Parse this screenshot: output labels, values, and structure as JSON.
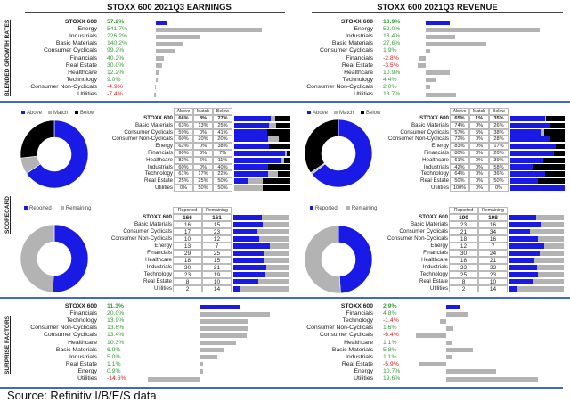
{
  "section_labels": {
    "growth": "BLENDED GROWTH RATES",
    "scorecard": "SCORECARD",
    "surprise": "SURPRISE FACTORS"
  },
  "source": "Source: Refinitiv I/B/E/S data",
  "colors": {
    "stoxx_bar": "#1a1ae6",
    "sector_bar": "#b3b3b3",
    "above": "#1a1ae6",
    "match": "#b3b3b3",
    "below": "#000000",
    "positive_text": "#3a9a3a",
    "negative_text": "#d22222",
    "divider": "#4466cc"
  },
  "earnings": {
    "title": "STOXX 600 2021Q3 EARNINGS",
    "growth": {
      "rows": [
        {
          "label": "STOXX 600",
          "value": "57.2%"
        },
        {
          "label": "Energy",
          "value": "541.7%"
        },
        {
          "label": "Industrials",
          "value": "226.2%"
        },
        {
          "label": "Basic Materials",
          "value": "140.2%"
        },
        {
          "label": "Consumer Cyclicals",
          "value": "99.2%"
        },
        {
          "label": "Financials",
          "value": "40.2%"
        },
        {
          "label": "Real Estate",
          "value": "30.0%"
        },
        {
          "label": "Healthcare",
          "value": "12.2%"
        },
        {
          "label": "Technology",
          "value": "9.0%"
        },
        {
          "label": "Consumer Non-Cyclicals",
          "value": "-4.9%"
        },
        {
          "label": "Utilities",
          "value": "-7.4%"
        }
      ]
    },
    "scorecard": {
      "legend": [
        "Above",
        "Match",
        "Below"
      ],
      "headers": [
        "Above",
        "Match",
        "Below"
      ],
      "rows": [
        {
          "label": "STOXX 600",
          "cells": [
            "66%",
            "8%",
            "27%"
          ]
        },
        {
          "label": "Basic Materials",
          "cells": [
            "63%",
            "13%",
            "25%"
          ]
        },
        {
          "label": "Consumer Cyclicals",
          "cells": [
            "59%",
            "0%",
            "41%"
          ]
        },
        {
          "label": "Consumer Non-Cyclicals",
          "cells": [
            "60%",
            "20%",
            "20%"
          ]
        },
        {
          "label": "Energy",
          "cells": [
            "62%",
            "0%",
            "38%"
          ]
        },
        {
          "label": "Financials",
          "cells": [
            "90%",
            "3%",
            "7%"
          ]
        },
        {
          "label": "Healthcare",
          "cells": [
            "83%",
            "6%",
            "11%"
          ]
        },
        {
          "label": "Industrials",
          "cells": [
            "60%",
            "0%",
            "40%"
          ]
        },
        {
          "label": "Technology",
          "cells": [
            "61%",
            "17%",
            "22%"
          ]
        },
        {
          "label": "Real Estate",
          "cells": [
            "25%",
            "25%",
            "50%"
          ]
        },
        {
          "label": "Utilities",
          "cells": [
            "0%",
            "50%",
            "50%"
          ]
        }
      ]
    },
    "reported": {
      "legend": [
        "Reported",
        "Remaining"
      ],
      "headers": [
        "Reported",
        "Remaining"
      ],
      "rows": [
        {
          "label": "STOXX 600",
          "cells": [
            "166",
            "161"
          ]
        },
        {
          "label": "Basic Materials",
          "cells": [
            "16",
            "15"
          ]
        },
        {
          "label": "Consumer Cyclicals",
          "cells": [
            "17",
            "23"
          ]
        },
        {
          "label": "Consumer Non-Cyclicals",
          "cells": [
            "10",
            "12"
          ]
        },
        {
          "label": "Energy",
          "cells": [
            "13",
            "7"
          ]
        },
        {
          "label": "Financials",
          "cells": [
            "29",
            "25"
          ]
        },
        {
          "label": "Healthcare",
          "cells": [
            "18",
            "15"
          ]
        },
        {
          "label": "Industrials",
          "cells": [
            "30",
            "21"
          ]
        },
        {
          "label": "Technology",
          "cells": [
            "23",
            "19"
          ]
        },
        {
          "label": "Real Estate",
          "cells": [
            "8",
            "10"
          ]
        },
        {
          "label": "Utilities",
          "cells": [
            "2",
            "14"
          ]
        }
      ]
    },
    "surprise": {
      "rows": [
        {
          "label": "STOXX 600",
          "value": "11.3%"
        },
        {
          "label": "Financials",
          "value": "20.0%"
        },
        {
          "label": "Technology",
          "value": "13.9%"
        },
        {
          "label": "Consumer Non-Cyclicals",
          "value": "13.6%"
        },
        {
          "label": "Consumer Cyclicals",
          "value": "13.4%"
        },
        {
          "label": "Healthcare",
          "value": "10.3%"
        },
        {
          "label": "Basic Materials",
          "value": "6.9%"
        },
        {
          "label": "Industrials",
          "value": "5.0%"
        },
        {
          "label": "Real Estate",
          "value": "1.1%"
        },
        {
          "label": "Energy",
          "value": "0.9%"
        },
        {
          "label": "Utilities",
          "value": "-14.6%"
        }
      ]
    }
  },
  "revenue": {
    "title": "STOXX 600 2021Q3 REVENUE",
    "growth": {
      "rows": [
        {
          "label": "STOXX 600",
          "value": "10.9%"
        },
        {
          "label": "Energy",
          "value": "52.0%"
        },
        {
          "label": "Industrials",
          "value": "13.4%"
        },
        {
          "label": "Basic Materials",
          "value": "27.6%"
        },
        {
          "label": "Consumer Cyclicals",
          "value": "1.9%"
        },
        {
          "label": "Financials",
          "value": "-2.8%"
        },
        {
          "label": "Real Estate",
          "value": "-3.5%"
        },
        {
          "label": "Healthcare",
          "value": "10.9%"
        },
        {
          "label": "Technology",
          "value": "4.4%"
        },
        {
          "label": "Consumer Non-Cyclicals",
          "value": "2.0%"
        },
        {
          "label": "Utilities",
          "value": "13.7%"
        }
      ]
    },
    "scorecard": {
      "legend": [
        "Above",
        "Match",
        "Below"
      ],
      "headers": [
        "Above",
        "Match",
        "Below"
      ],
      "rows": [
        {
          "label": "STOXX 600",
          "cells": [
            "65%",
            "1%",
            "35%"
          ]
        },
        {
          "label": "Basic Materials",
          "cells": [
            "74%",
            "0%",
            "26%"
          ]
        },
        {
          "label": "Consumer Cyclicals",
          "cells": [
            "57%",
            "5%",
            "38%"
          ]
        },
        {
          "label": "Consumer Non-Cyclicals",
          "cells": [
            "72%",
            "0%",
            "28%"
          ]
        },
        {
          "label": "Energy",
          "cells": [
            "83%",
            "0%",
            "17%"
          ]
        },
        {
          "label": "Financials",
          "cells": [
            "80%",
            "0%",
            "20%"
          ]
        },
        {
          "label": "Healthcare",
          "cells": [
            "61%",
            "0%",
            "39%"
          ]
        },
        {
          "label": "Industrials",
          "cells": [
            "42%",
            "0%",
            "58%"
          ]
        },
        {
          "label": "Technology",
          "cells": [
            "64%",
            "0%",
            "36%"
          ]
        },
        {
          "label": "Real Estate",
          "cells": [
            "50%",
            "0%",
            "50%"
          ]
        },
        {
          "label": "Utilities",
          "cells": [
            "100%",
            "0%",
            "0%"
          ]
        }
      ]
    },
    "reported": {
      "legend": [
        "Reported",
        "Remaining"
      ],
      "headers": [
        "Reported",
        "Remaining"
      ],
      "rows": [
        {
          "label": "STOXX 600",
          "cells": [
            "190",
            "198"
          ]
        },
        {
          "label": "Basic Materials",
          "cells": [
            "23",
            "16"
          ]
        },
        {
          "label": "Consumer Cyclicals",
          "cells": [
            "21",
            "34"
          ]
        },
        {
          "label": "Consumer Non-Cyclicals",
          "cells": [
            "18",
            "16"
          ]
        },
        {
          "label": "Energy",
          "cells": [
            "12",
            "7"
          ]
        },
        {
          "label": "Financials",
          "cells": [
            "30",
            "24"
          ]
        },
        {
          "label": "Healthcare",
          "cells": [
            "18",
            "21"
          ]
        },
        {
          "label": "Industrials",
          "cells": [
            "33",
            "33"
          ]
        },
        {
          "label": "Technology",
          "cells": [
            "25",
            "23"
          ]
        },
        {
          "label": "Real Estate",
          "cells": [
            "8",
            "10"
          ]
        },
        {
          "label": "Utilities",
          "cells": [
            "2",
            "14"
          ]
        }
      ]
    },
    "surprise": {
      "rows": [
        {
          "label": "STOXX 600",
          "value": "2.9%"
        },
        {
          "label": "Financials",
          "value": "4.8%"
        },
        {
          "label": "Technology",
          "value": "-1.4%"
        },
        {
          "label": "Consumer Non-Cyclicals",
          "value": "1.6%"
        },
        {
          "label": "Consumer Cyclicals",
          "value": "-6.4%"
        },
        {
          "label": "Healthcare",
          "value": "1.1%"
        },
        {
          "label": "Basic Materials",
          "value": "5.8%"
        },
        {
          "label": "Industrials",
          "value": "1.1%"
        },
        {
          "label": "Real Estate",
          "value": "-5.9%"
        },
        {
          "label": "Energy",
          "value": "10.7%"
        },
        {
          "label": "Utilities",
          "value": "19.6%"
        }
      ]
    }
  },
  "chart_data": [
    {
      "type": "bar",
      "title": "STOXX 600 2021Q3 EARNINGS",
      "section": "BLENDED GROWTH RATES",
      "orientation": "horizontal",
      "categories": [
        "STOXX 600",
        "Energy",
        "Industrials",
        "Basic Materials",
        "Consumer Cyclicals",
        "Financials",
        "Real Estate",
        "Healthcare",
        "Technology",
        "Consumer Non-Cyclicals",
        "Utilities"
      ],
      "values": [
        57.2,
        541.7,
        226.2,
        140.2,
        99.2,
        40.2,
        30.0,
        12.2,
        9.0,
        -4.9,
        -7.4
      ]
    },
    {
      "type": "bar",
      "title": "STOXX 600 2021Q3 REVENUE",
      "section": "BLENDED GROWTH RATES",
      "orientation": "horizontal",
      "categories": [
        "STOXX 600",
        "Energy",
        "Industrials",
        "Basic Materials",
        "Consumer Cyclicals",
        "Financials",
        "Real Estate",
        "Healthcare",
        "Technology",
        "Consumer Non-Cyclicals",
        "Utilities"
      ],
      "values": [
        10.9,
        52.0,
        13.4,
        27.6,
        1.9,
        -2.8,
        -3.5,
        10.9,
        4.4,
        2.0,
        13.7
      ]
    },
    {
      "type": "pie",
      "section": "SCORECARD",
      "title": "STOXX 600 2021Q3 EARNINGS",
      "labels": [
        "Above",
        "Match",
        "Below"
      ],
      "values": [
        66,
        8,
        27
      ]
    },
    {
      "type": "pie",
      "section": "SCORECARD",
      "title": "STOXX 600 2021Q3 REVENUE",
      "labels": [
        "Above",
        "Match",
        "Below"
      ],
      "values": [
        65,
        1,
        35
      ]
    },
    {
      "type": "pie",
      "section": "SCORECARD",
      "title": "STOXX 600 2021Q3 EARNINGS",
      "labels": [
        "Reported",
        "Remaining"
      ],
      "values": [
        166,
        161
      ]
    },
    {
      "type": "pie",
      "section": "SCORECARD",
      "title": "STOXX 600 2021Q3 REVENUE",
      "labels": [
        "Reported",
        "Remaining"
      ],
      "values": [
        190,
        198
      ]
    },
    {
      "type": "bar",
      "title": "STOXX 600 2021Q3 EARNINGS",
      "section": "SURPRISE FACTORS",
      "orientation": "horizontal",
      "categories": [
        "STOXX 600",
        "Financials",
        "Technology",
        "Consumer Non-Cyclicals",
        "Consumer Cyclicals",
        "Healthcare",
        "Basic Materials",
        "Industrials",
        "Real Estate",
        "Energy",
        "Utilities"
      ],
      "values": [
        11.3,
        20.0,
        13.9,
        13.6,
        13.4,
        10.3,
        6.9,
        5.0,
        1.1,
        0.9,
        -14.6
      ]
    },
    {
      "type": "bar",
      "title": "STOXX 600 2021Q3 REVENUE",
      "section": "SURPRISE FACTORS",
      "orientation": "horizontal",
      "categories": [
        "STOXX 600",
        "Financials",
        "Technology",
        "Consumer Non-Cyclicals",
        "Consumer Cyclicals",
        "Healthcare",
        "Basic Materials",
        "Industrials",
        "Real Estate",
        "Energy",
        "Utilities"
      ],
      "values": [
        2.9,
        4.8,
        -1.4,
        1.6,
        -6.4,
        1.1,
        5.8,
        1.1,
        -5.9,
        10.7,
        19.6
      ]
    }
  ]
}
